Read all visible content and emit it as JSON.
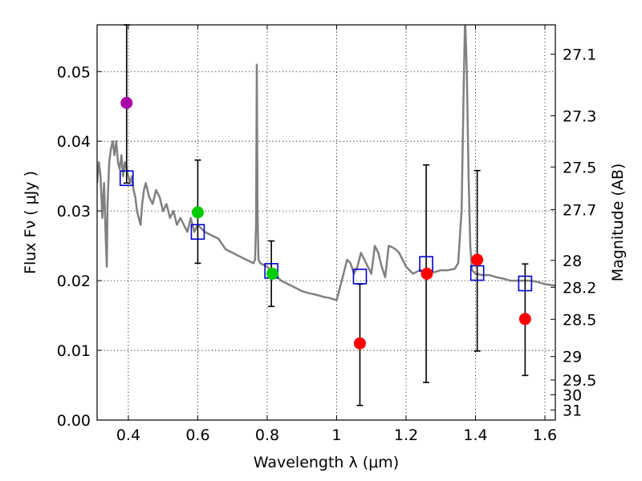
{
  "chart_data": {
    "type": "scatter",
    "xlabel": "Wavelength  λ (μm)",
    "ylabel": "Flux  Fν  ( μJy )",
    "ylabel_right": "Magnitude (AB)",
    "xlim": [
      0.31,
      1.63
    ],
    "ylim": [
      0.0,
      0.0567
    ],
    "x_ticks": [
      "0.4",
      "0.6",
      "0.8",
      "1",
      "1.2",
      "1.4",
      "1.6"
    ],
    "x_tick_values": [
      0.4,
      0.6,
      0.8,
      1.0,
      1.2,
      1.4,
      1.6
    ],
    "y_ticks": [
      "0.00",
      "0.01",
      "0.02",
      "0.03",
      "0.04",
      "0.05"
    ],
    "y_tick_values": [
      0.0,
      0.01,
      0.02,
      0.03,
      0.04,
      0.05
    ],
    "right_ticks": [
      {
        "label": "27.1",
        "mag": 27.1
      },
      {
        "label": "27.3",
        "mag": 27.3
      },
      {
        "label": "27.5",
        "mag": 27.5
      },
      {
        "label": "27.7",
        "mag": 27.7
      },
      {
        "label": "28",
        "mag": 28.0
      },
      {
        "label": "28.2",
        "mag": 28.2
      },
      {
        "label": "28.5",
        "mag": 28.5
      },
      {
        "label": "29",
        "mag": 29.0
      },
      {
        "label": "29.5",
        "mag": 29.5
      },
      {
        "label": "30",
        "mag": 30.0
      },
      {
        "label": "31",
        "mag": 31.0
      }
    ],
    "grid": true,
    "template_spectrum": {
      "name": "model SED",
      "color": "#808080",
      "x": [
        0.31,
        0.315,
        0.32,
        0.325,
        0.33,
        0.335,
        0.338,
        0.34,
        0.345,
        0.35,
        0.355,
        0.36,
        0.365,
        0.37,
        0.375,
        0.38,
        0.385,
        0.39,
        0.395,
        0.4,
        0.405,
        0.41,
        0.415,
        0.42,
        0.425,
        0.43,
        0.435,
        0.44,
        0.445,
        0.45,
        0.46,
        0.47,
        0.48,
        0.49,
        0.5,
        0.51,
        0.52,
        0.53,
        0.54,
        0.55,
        0.56,
        0.57,
        0.58,
        0.59,
        0.6,
        0.62,
        0.64,
        0.66,
        0.68,
        0.7,
        0.72,
        0.74,
        0.76,
        0.765,
        0.768,
        0.77,
        0.772,
        0.775,
        0.78,
        0.8,
        0.82,
        0.84,
        0.86,
        0.88,
        0.9,
        0.92,
        0.94,
        0.96,
        0.98,
        1.0,
        1.02,
        1.03,
        1.04,
        1.05,
        1.06,
        1.07,
        1.08,
        1.09,
        1.1,
        1.11,
        1.12,
        1.13,
        1.14,
        1.15,
        1.16,
        1.17,
        1.18,
        1.19,
        1.2,
        1.22,
        1.24,
        1.26,
        1.28,
        1.3,
        1.32,
        1.34,
        1.35,
        1.36,
        1.365,
        1.37,
        1.375,
        1.38,
        1.385,
        1.39,
        1.4,
        1.42,
        1.44,
        1.46,
        1.48,
        1.5,
        1.52,
        1.54,
        1.56,
        1.58,
        1.6,
        1.63
      ],
      "y": [
        0.034,
        0.037,
        0.035,
        0.029,
        0.034,
        0.026,
        0.022,
        0.031,
        0.037,
        0.039,
        0.04,
        0.038,
        0.04,
        0.037,
        0.036,
        0.038,
        0.035,
        0.037,
        0.036,
        0.035,
        0.034,
        0.035,
        0.033,
        0.032,
        0.03,
        0.029,
        0.028,
        0.031,
        0.033,
        0.034,
        0.032,
        0.031,
        0.033,
        0.032,
        0.03,
        0.031,
        0.029,
        0.03,
        0.028,
        0.029,
        0.028,
        0.027,
        0.029,
        0.027,
        0.028,
        0.027,
        0.0265,
        0.026,
        0.0245,
        0.024,
        0.0235,
        0.023,
        0.0225,
        0.023,
        0.028,
        0.051,
        0.03,
        0.023,
        0.0225,
        0.022,
        0.021,
        0.02,
        0.0195,
        0.019,
        0.0185,
        0.0182,
        0.018,
        0.0177,
        0.0175,
        0.0172,
        0.021,
        0.023,
        0.0225,
        0.021,
        0.022,
        0.024,
        0.023,
        0.022,
        0.021,
        0.025,
        0.024,
        0.022,
        0.0205,
        0.025,
        0.0248,
        0.0245,
        0.024,
        0.023,
        0.022,
        0.021,
        0.0215,
        0.0213,
        0.0212,
        0.0215,
        0.0215,
        0.0217,
        0.0225,
        0.03,
        0.045,
        0.058,
        0.05,
        0.035,
        0.025,
        0.0215,
        0.021,
        0.0208,
        0.0208,
        0.0205,
        0.0203,
        0.02,
        0.02,
        0.02,
        0.02,
        0.0198,
        0.0195,
        0.0193
      ]
    },
    "error_bars": [
      {
        "x": 0.395,
        "low": 0.034,
        "high": 0.0567
      },
      {
        "x": 0.6,
        "low": 0.0225,
        "high": 0.0373
      },
      {
        "x": 0.812,
        "low": 0.0163,
        "high": 0.0257
      },
      {
        "x": 1.067,
        "low": 0.0021,
        "high": 0.0195
      },
      {
        "x": 1.258,
        "low": 0.0054,
        "high": 0.0366
      },
      {
        "x": 1.405,
        "low": 0.0099,
        "high": 0.0358
      },
      {
        "x": 1.543,
        "low": 0.0064,
        "high": 0.0224
      }
    ],
    "model_photometry": {
      "name": "model photometry",
      "marker": "open-square",
      "color": "#0000cc",
      "x": [
        0.395,
        0.6,
        0.812,
        1.067,
        1.258,
        1.405,
        1.543
      ],
      "y": [
        0.0347,
        0.027,
        0.0214,
        0.0206,
        0.0224,
        0.0211,
        0.0196
      ]
    },
    "observed_points": [
      {
        "x": 0.395,
        "y": 0.0455,
        "color": "#aa00aa"
      },
      {
        "x": 0.6,
        "y": 0.0298,
        "color": "#00cc00"
      },
      {
        "x": 0.815,
        "y": 0.021,
        "color": "#00cc00"
      },
      {
        "x": 1.067,
        "y": 0.011,
        "color": "#ff0000"
      },
      {
        "x": 1.26,
        "y": 0.021,
        "color": "#ff0000"
      },
      {
        "x": 1.405,
        "y": 0.023,
        "color": "#ff0000"
      },
      {
        "x": 1.543,
        "y": 0.0145,
        "color": "#ff0000"
      }
    ]
  }
}
